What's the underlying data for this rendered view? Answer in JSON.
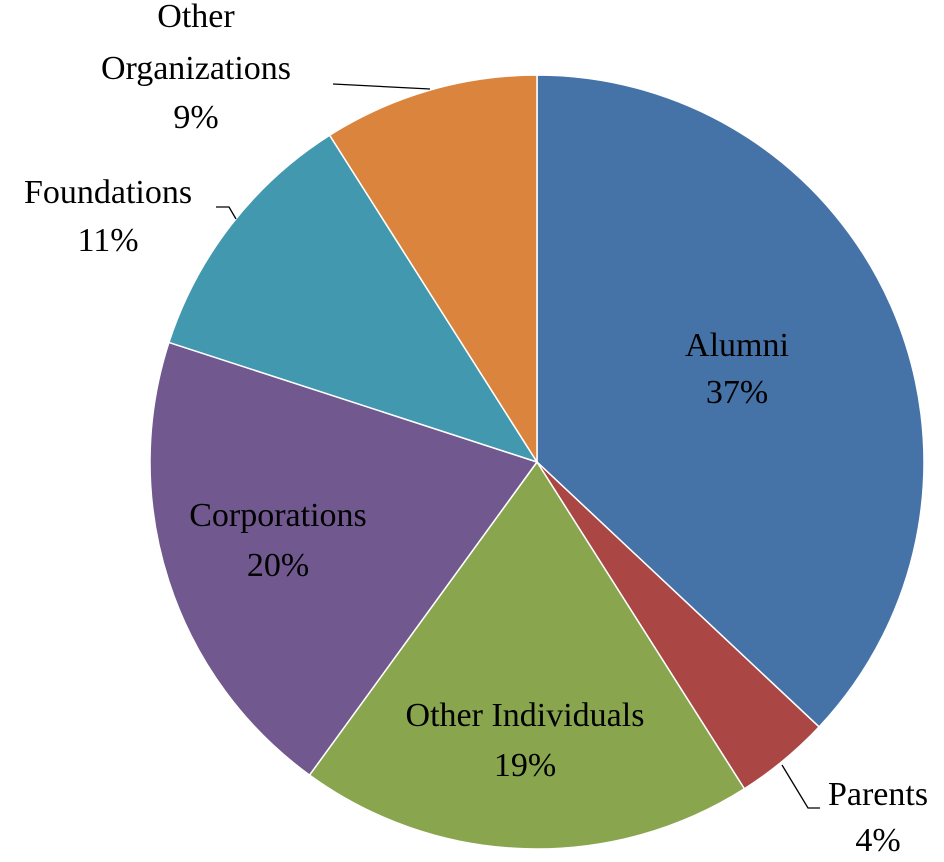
{
  "chart_data": {
    "type": "pie",
    "categories": [
      "Alumni",
      "Parents",
      "Other Individuals",
      "Corporations",
      "Foundations",
      "Other Organizations"
    ],
    "values": [
      37,
      4,
      19,
      20,
      11,
      9
    ],
    "value_labels": [
      "37%",
      "4%",
      "19%",
      "20%",
      "11%",
      "9%"
    ],
    "colors": [
      "#4572a7",
      "#aa4643",
      "#89a54e",
      "#71588f",
      "#4198af",
      "#db843d"
    ]
  }
}
